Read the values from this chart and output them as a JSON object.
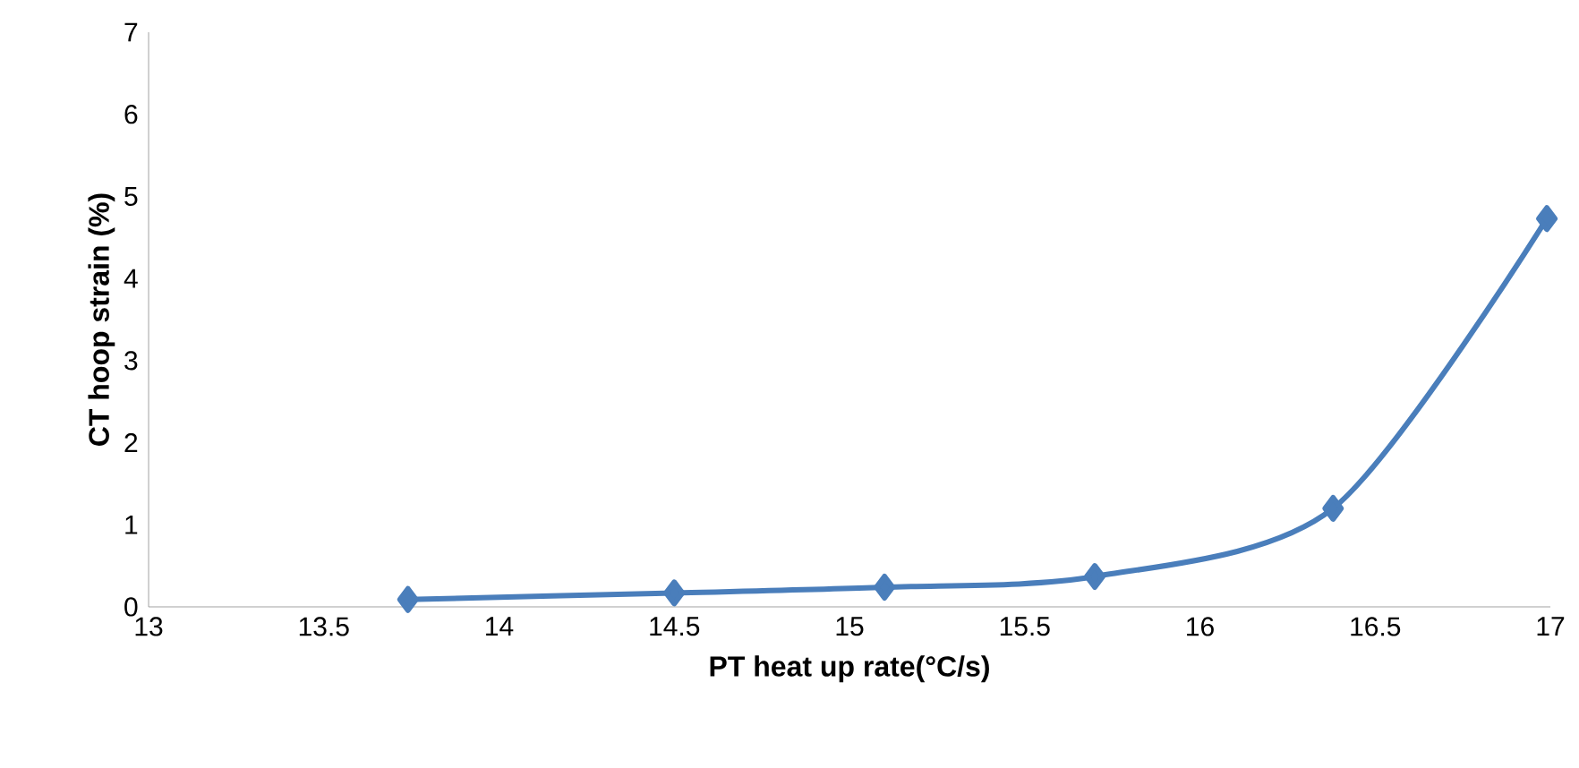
{
  "chart_data": {
    "type": "line",
    "xlabel": "PT heat up rate(°C/s)",
    "ylabel": "CT hoop strain (%)",
    "series": [
      {
        "color": "#4a7ebb",
        "x": [
          13.74,
          14.5,
          15.1,
          15.7,
          16.38,
          16.99
        ],
        "values": [
          0.09,
          0.17,
          0.24,
          0.37,
          1.2,
          4.73
        ]
      }
    ],
    "xlim": [
      13,
      17
    ],
    "xticks": [
      13,
      13.5,
      14,
      14.5,
      15,
      15.5,
      16,
      16.5,
      17
    ],
    "ylim": [
      0,
      7
    ],
    "yticks": [
      0,
      1,
      2,
      3,
      4,
      5,
      6,
      7
    ],
    "grid": false,
    "legend": false,
    "marker": "diamond",
    "line_style": "solid"
  }
}
